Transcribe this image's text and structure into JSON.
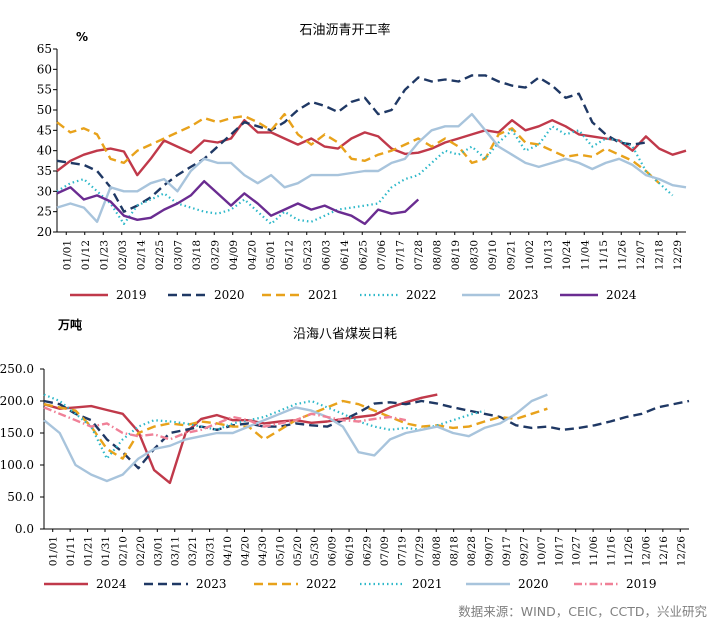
{
  "source": "数据来源：WIND，CEIC，CCTD，兴业研究",
  "chart_data": [
    {
      "type": "line",
      "title": "石油沥青开工率",
      "unit": "%",
      "ylim": [
        20,
        65
      ],
      "yticks": [
        "20",
        "25",
        "30",
        "35",
        "40",
        "45",
        "50",
        "55",
        "60",
        "65"
      ],
      "x_tick_labels": [
        "01/01",
        "01/12",
        "01/23",
        "02/03",
        "02/14",
        "02/25",
        "03/07",
        "03/18",
        "03/29",
        "04/09",
        "04/20",
        "05/01",
        "05/12",
        "05/23",
        "06/03",
        "06/14",
        "06/25",
        "07/06",
        "07/17",
        "07/28",
        "08/08",
        "08/19",
        "08/30",
        "09/10",
        "09/21",
        "10/02",
        "10/13",
        "10/24",
        "11/04",
        "11/15",
        "11/26",
        "12/07",
        "12/18",
        "12/29"
      ],
      "legend_position": "bottom",
      "series": [
        {
          "name": "2019",
          "color": "#c0394a",
          "style": "solid",
          "values": [
            35,
            37.5,
            39,
            40,
            40.5,
            39.8,
            34,
            38,
            42.5,
            41,
            39.5,
            42.5,
            42,
            43,
            47.5,
            44.5,
            44.5,
            43,
            41.5,
            43,
            41,
            40.5,
            43,
            44.5,
            43.5,
            40.5,
            39.2,
            39.5,
            40.5,
            42,
            43,
            44,
            45,
            44.5,
            47.5,
            45,
            46,
            47.5,
            46,
            44,
            43.5,
            43,
            42.5,
            40,
            43.5,
            40.5,
            39,
            40
          ]
        },
        {
          "name": "2020",
          "color": "#1f3864",
          "style": "dash",
          "values": [
            37.5,
            37,
            36.5,
            35,
            31,
            25,
            26.5,
            28.5,
            31.5,
            34,
            36,
            38,
            41,
            44,
            47,
            46,
            45,
            47,
            50,
            52,
            51,
            49.5,
            52,
            53,
            49,
            50,
            55,
            58,
            57,
            57.5,
            57,
            58.5,
            58.5,
            57,
            56,
            55.5,
            58,
            56,
            53,
            54,
            47,
            44,
            42,
            41.5,
            42
          ]
        },
        {
          "name": "2021",
          "color": "#e8a21b",
          "style": "dash",
          "values": [
            47,
            44.5,
            45.5,
            44,
            38,
            37,
            40,
            41.5,
            43,
            44.5,
            46,
            48,
            47,
            48,
            48.5,
            47,
            45,
            49,
            44,
            41.5,
            44,
            42,
            38,
            37.5,
            39,
            40,
            41.5,
            43,
            41,
            43,
            41,
            37,
            38,
            44,
            45.5,
            42,
            41.5,
            40,
            38.5,
            39,
            38.5,
            40.5,
            39,
            37.5,
            35,
            32
          ]
        },
        {
          "name": "2022",
          "color": "#2db8c9",
          "style": "dot",
          "values": [
            30,
            32,
            33,
            30,
            27,
            22,
            26.5,
            28,
            29.5,
            27,
            26,
            25,
            24.5,
            25.5,
            28,
            25,
            22,
            25,
            23,
            22.5,
            24,
            25.5,
            26,
            26.5,
            27,
            31,
            33,
            34,
            37,
            40,
            39,
            41,
            38,
            42,
            45,
            40,
            41.5,
            46,
            44,
            45,
            41,
            43,
            42.5,
            41,
            35,
            32,
            29
          ]
        },
        {
          "name": "2023",
          "color": "#a8c4dc",
          "style": "solid",
          "values": [
            26,
            27,
            26,
            22.5,
            31,
            30,
            30,
            32,
            33,
            30,
            35,
            38,
            37,
            37,
            34,
            32,
            34,
            31,
            32,
            34,
            34,
            34,
            34.5,
            35,
            35,
            37,
            38,
            42,
            45,
            46,
            46,
            49,
            45,
            41,
            39,
            37,
            36,
            37,
            38,
            37,
            35.5,
            37,
            38,
            36.5,
            34,
            33,
            31.5,
            31
          ]
        },
        {
          "name": "2024",
          "color": "#6a2c91",
          "style": "solid",
          "values": [
            29.5,
            31,
            28,
            29,
            27.5,
            24,
            23,
            23.5,
            25.5,
            27,
            29,
            32.5,
            29.5,
            26.5,
            29.5,
            27,
            24,
            25.5,
            27,
            25.5,
            26.5,
            25,
            24,
            22,
            25.5,
            24.5,
            25,
            28
          ]
        }
      ]
    },
    {
      "type": "line",
      "title": "沿海八省煤炭日耗",
      "unit": "万吨",
      "ylim": [
        0,
        250
      ],
      "yticks": [
        "0.0",
        "50.0",
        "100.0",
        "150.0",
        "200.0",
        "250.0"
      ],
      "x_tick_labels": [
        "01/01",
        "01/11",
        "01/21",
        "01/31",
        "02/10",
        "02/20",
        "03/01",
        "03/11",
        "03/21",
        "03/31",
        "04/10",
        "04/20",
        "04/30",
        "05/10",
        "05/20",
        "05/30",
        "06/09",
        "06/19",
        "06/29",
        "07/09",
        "07/19",
        "07/29",
        "08/08",
        "08/18",
        "08/28",
        "09/07",
        "09/17",
        "09/27",
        "10/07",
        "10/17",
        "10/27",
        "11/06",
        "11/16",
        "11/26",
        "12/06",
        "12/16",
        "12/26"
      ],
      "legend_position": "bottom",
      "series": [
        {
          "name": "2024",
          "color": "#c0394a",
          "style": "solid",
          "values": [
            195,
            188,
            190,
            192,
            186,
            180,
            152,
            92,
            72,
            150,
            172,
            178,
            170,
            170,
            165,
            168,
            170,
            166,
            168,
            172,
            175,
            178,
            190,
            198,
            205,
            210
          ]
        },
        {
          "name": "2023",
          "color": "#1f3864",
          "style": "dash",
          "values": [
            200,
            195,
            180,
            170,
            140,
            120,
            95,
            125,
            150,
            155,
            160,
            155,
            162,
            165,
            160,
            160,
            165,
            162,
            160,
            170,
            182,
            196,
            198,
            195,
            200,
            196,
            190,
            185,
            180,
            175,
            162,
            158,
            160,
            155,
            158,
            162,
            168,
            175,
            180,
            190,
            195,
            200
          ]
        },
        {
          "name": "2022",
          "color": "#e8a21b",
          "style": "dash",
          "values": [
            195,
            190,
            185,
            160,
            125,
            110,
            150,
            160,
            165,
            162,
            168,
            165,
            160,
            160,
            140,
            155,
            170,
            180,
            190,
            200,
            195,
            185,
            175,
            165,
            160,
            162,
            158,
            160,
            168,
            175,
            172,
            180,
            188
          ]
        },
        {
          "name": "2021",
          "color": "#2db8c9",
          "style": "dot",
          "values": [
            210,
            200,
            180,
            160,
            110,
            140,
            160,
            170,
            168,
            165,
            160,
            155,
            165,
            170,
            175,
            185,
            195,
            200,
            190,
            180,
            168,
            160,
            155,
            158,
            155,
            162,
            170,
            178,
            185
          ]
        },
        {
          "name": "2020",
          "color": "#a8c4dc",
          "style": "solid",
          "values": [
            170,
            150,
            100,
            85,
            75,
            85,
            110,
            125,
            130,
            140,
            145,
            150,
            150,
            160,
            170,
            180,
            190,
            185,
            175,
            160,
            120,
            115,
            140,
            150,
            155,
            160,
            150,
            145,
            158,
            165,
            180,
            200,
            210
          ]
        },
        {
          "name": "2019",
          "color": "#f08097",
          "style": "dashdot",
          "values": [
            190,
            180,
            170,
            160,
            165,
            150,
            145,
            148,
            140,
            150,
            155,
            165,
            175,
            170,
            160,
            165,
            170,
            180,
            175,
            170,
            168,
            172,
            175,
            170
          ]
        }
      ]
    }
  ]
}
